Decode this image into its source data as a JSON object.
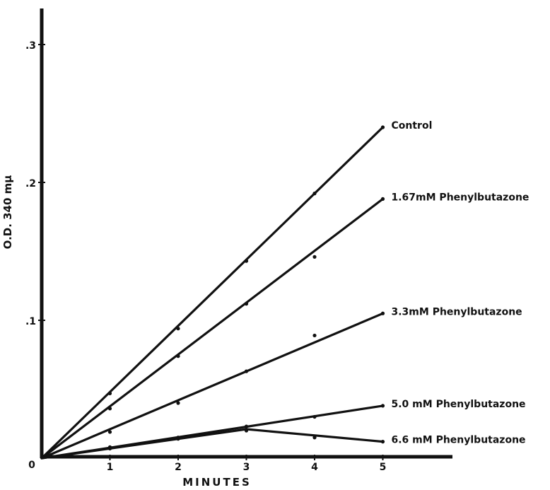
{
  "chart_data": {
    "type": "line",
    "xlabel": "MINUTES",
    "ylabel": "O.D. 340 mμ",
    "xlim": [
      0,
      6
    ],
    "ylim": [
      0,
      0.33
    ],
    "x_ticks": [
      "1",
      "2",
      "3",
      "4",
      "5"
    ],
    "y_ticks": [
      ".1",
      ".2",
      ".3"
    ],
    "origin_label": "0",
    "grid": false,
    "series": [
      {
        "name": "Control",
        "line": [
          [
            0,
            0
          ],
          [
            5,
            0.24
          ]
        ],
        "points": [
          [
            1,
            0.047
          ],
          [
            2,
            0.094
          ],
          [
            3,
            0.143
          ],
          [
            4,
            0.192
          ],
          [
            5,
            0.24
          ]
        ]
      },
      {
        "name": "1.67mM Phenylbutazone",
        "line": [
          [
            0,
            0
          ],
          [
            5,
            0.188
          ]
        ],
        "points": [
          [
            1,
            0.036
          ],
          [
            2,
            0.074
          ],
          [
            3,
            0.112
          ],
          [
            4,
            0.146
          ],
          [
            5,
            0.188
          ]
        ]
      },
      {
        "name": "3.3mM Phenylbutazone",
        "line": [
          [
            0,
            0
          ],
          [
            5,
            0.105
          ]
        ],
        "points": [
          [
            1,
            0.019
          ],
          [
            2,
            0.04
          ],
          [
            3,
            0.063
          ],
          [
            4,
            0.089
          ],
          [
            5,
            0.105
          ]
        ]
      },
      {
        "name": "5.0 mM Phenylbutazone",
        "line": [
          [
            0,
            0
          ],
          [
            5,
            0.038
          ]
        ],
        "points": [
          [
            1,
            0.008
          ],
          [
            2,
            0.015
          ],
          [
            3,
            0.023
          ],
          [
            4,
            0.03
          ],
          [
            5,
            0.038
          ]
        ]
      },
      {
        "name": "6.6 mM Phenylbutazone",
        "line": [
          [
            0,
            0
          ],
          [
            3,
            0.021
          ],
          [
            5,
            0.012
          ]
        ],
        "points": [
          [
            1,
            0.007
          ],
          [
            2,
            0.014
          ],
          [
            3,
            0.02
          ],
          [
            4,
            0.015
          ],
          [
            5,
            0.012
          ]
        ]
      }
    ]
  }
}
